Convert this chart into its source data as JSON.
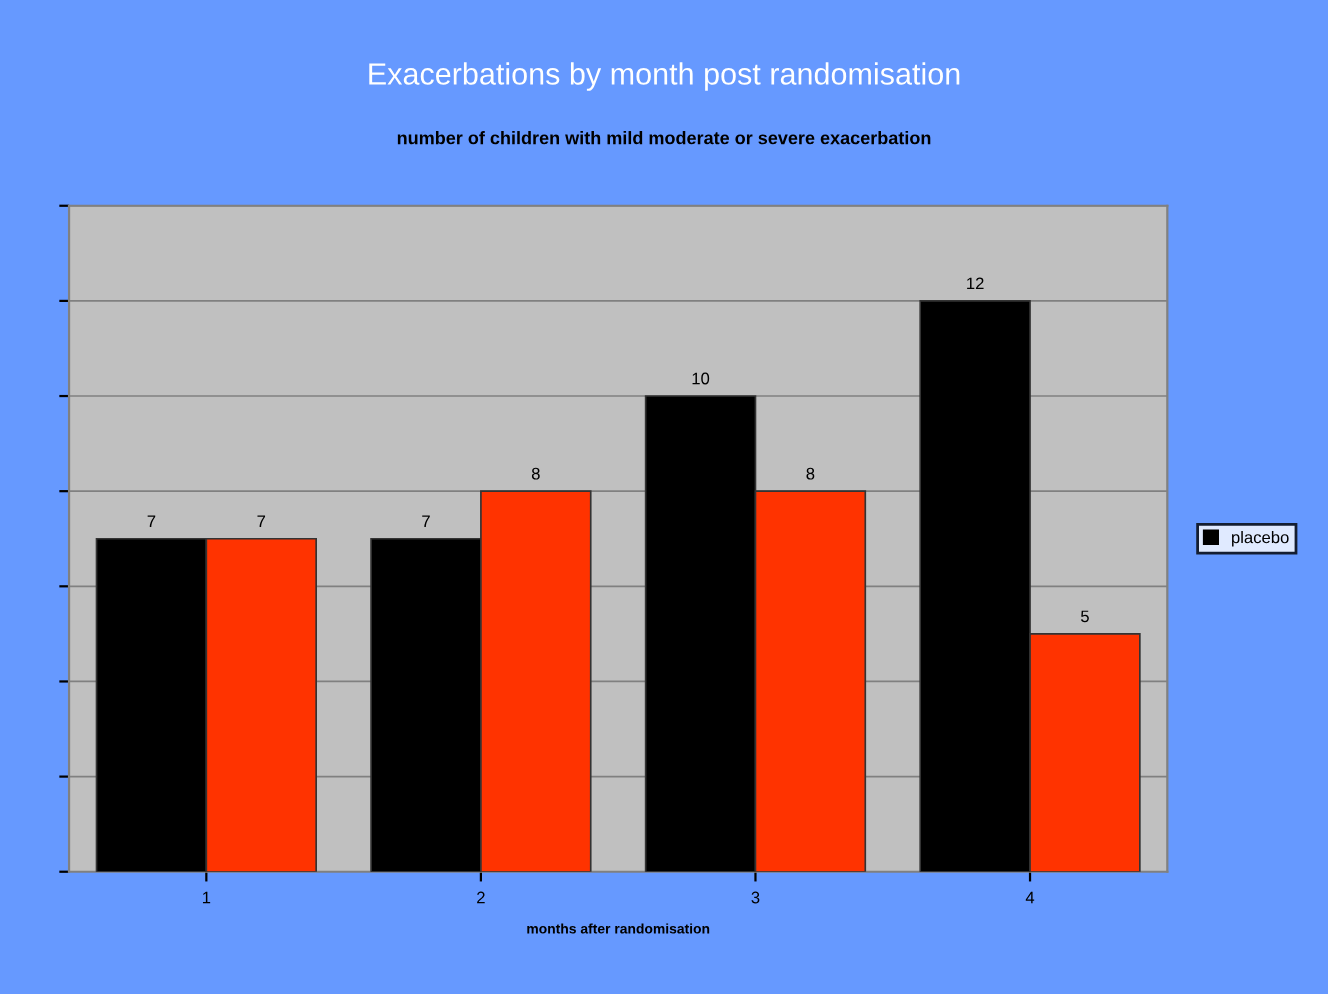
{
  "chart_data": {
    "type": "bar",
    "title": "Exacerbations by month post randomisation",
    "subtitle": "number of children with mild moderate or severe exacerbation",
    "xlabel": "months after randomisation",
    "categories": [
      "1",
      "2",
      "3",
      "4"
    ],
    "series": [
      {
        "name": "placebo",
        "color": "#000000",
        "values": [
          7,
          7,
          10,
          12
        ]
      },
      {
        "color": "#ff3300",
        "values": [
          7,
          8,
          8,
          5
        ]
      }
    ],
    "ylim": [
      0,
      14
    ],
    "yticks": [
      {
        "value": 0,
        "label": null
      },
      {
        "value": 2,
        "label": null
      },
      {
        "value": 4,
        "label": null
      },
      {
        "value": 6,
        "label": null
      },
      {
        "value": 8,
        "label": null
      },
      {
        "value": 10,
        "label": null
      },
      {
        "value": 12,
        "label": null
      },
      {
        "value": 14,
        "label": null
      }
    ],
    "tick_labels": "x",
    "grid": "y",
    "legend": "right",
    "data_labels": true
  }
}
